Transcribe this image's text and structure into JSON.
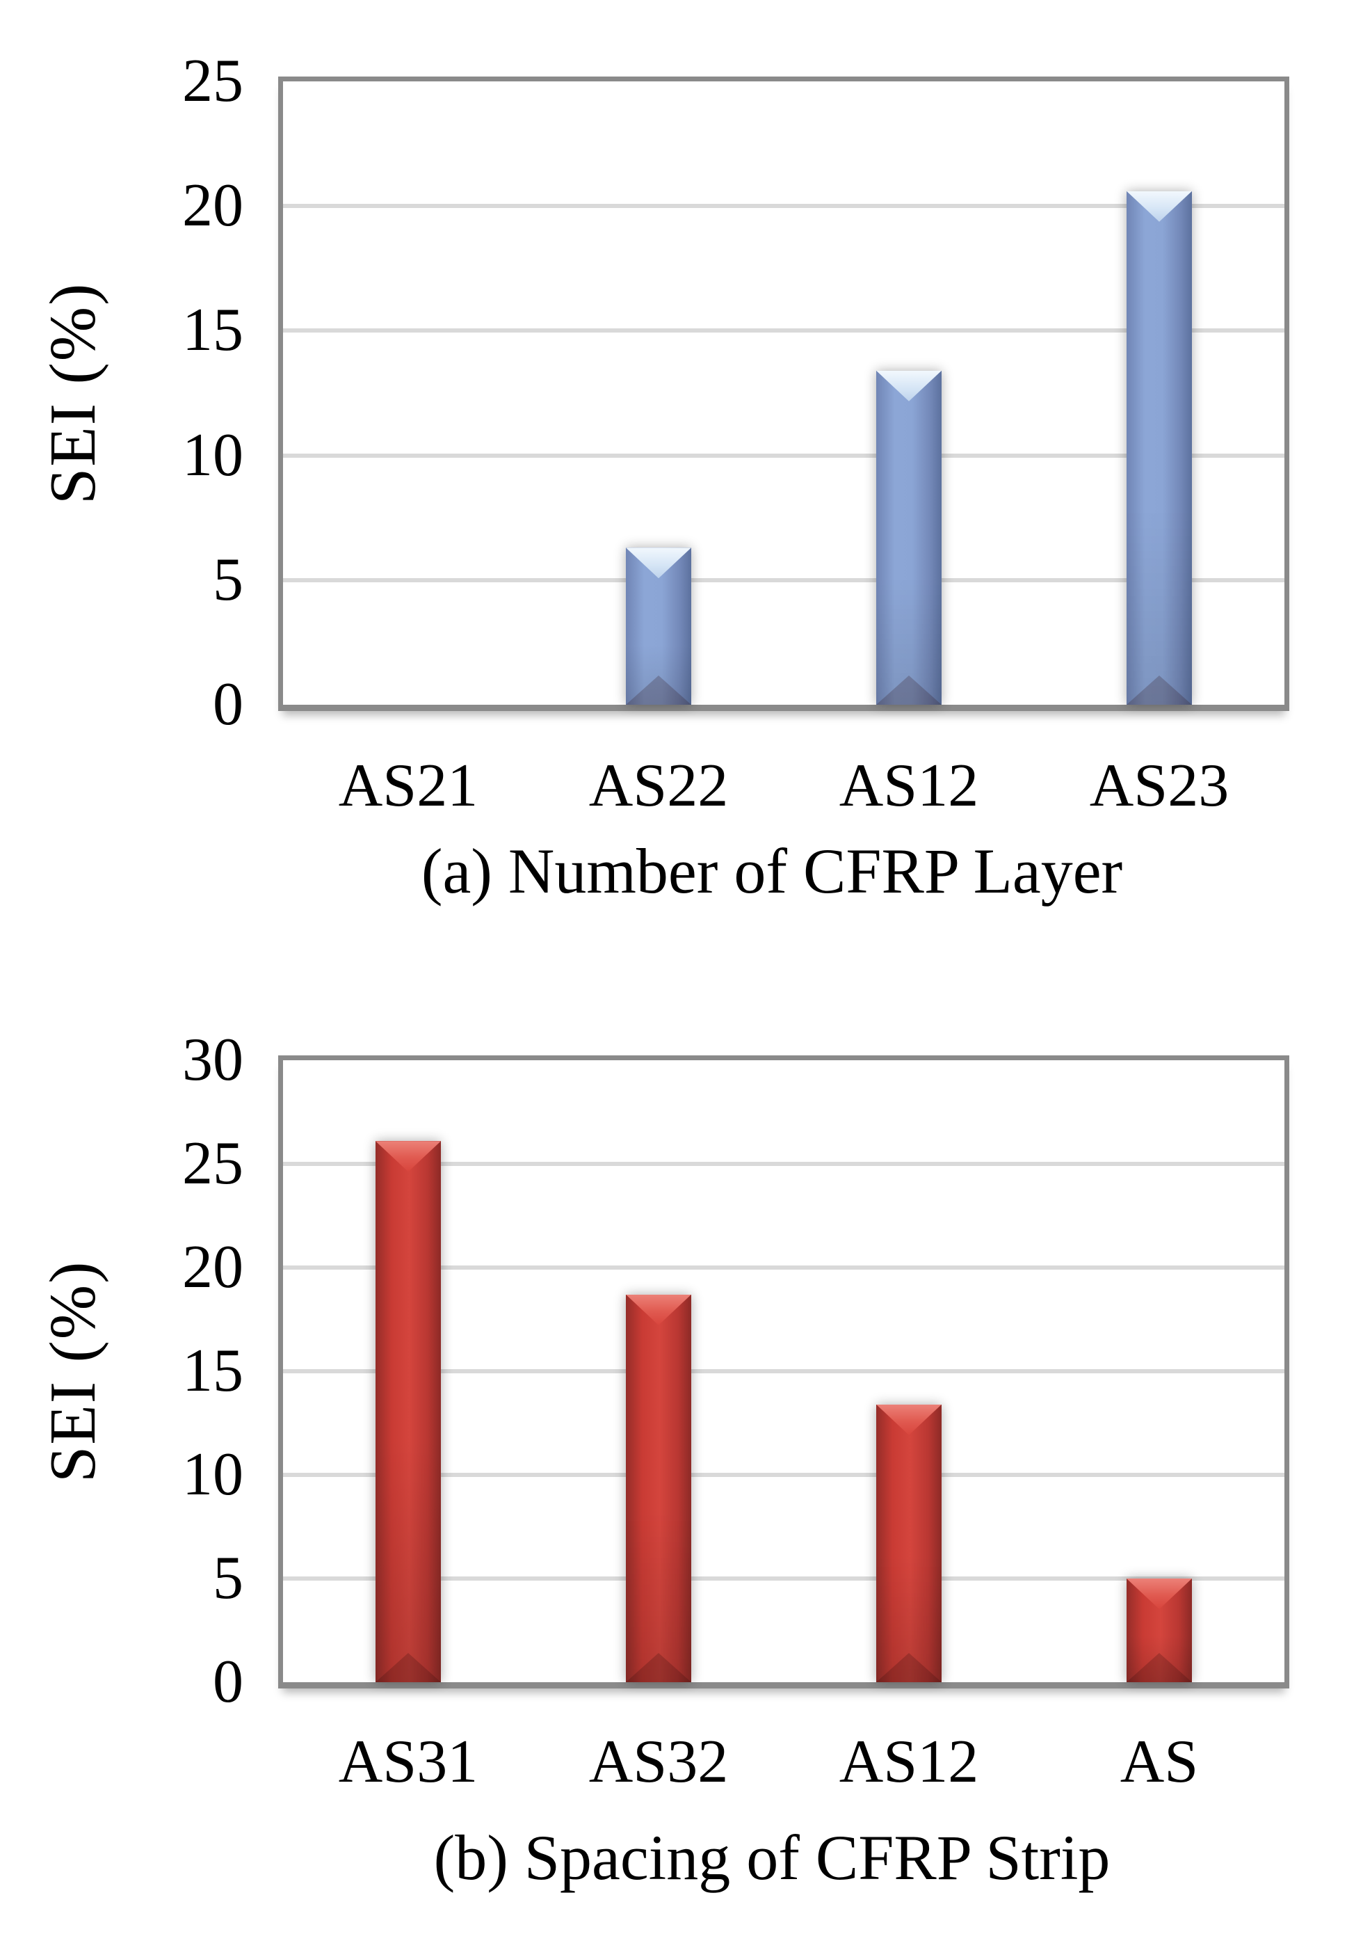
{
  "figure": {
    "background": "#FFFFFF",
    "description_visible_text_only": true
  },
  "colors": {
    "blue_bar_body": "#8CA6D6",
    "blue_bar_edge_dark": "#5C719E",
    "blue_bar_highlight": "#E6F0FA",
    "red_bar_body": "#CE3B35",
    "red_bar_edge_dark": "#8C2A26",
    "red_bar_highlight": "#E2655B",
    "gridline": "#D9D9D9",
    "axis_frame": "#8A8A8A",
    "text": "#000000"
  },
  "chart_data": [
    {
      "id": "a",
      "type": "bar",
      "title": "(a) Number of CFRP Layer",
      "ylabel": "SEI (%)",
      "categories": [
        "AS21",
        "AS22",
        "AS12",
        "AS23"
      ],
      "values": [
        0,
        6.3,
        13.4,
        20.6
      ],
      "ylim": [
        0,
        25
      ],
      "yticks": [
        0,
        5,
        10,
        15,
        20,
        25
      ],
      "grid": true,
      "legend": "none",
      "bar_style": "blue"
    },
    {
      "id": "b",
      "type": "bar",
      "title": "(b) Spacing of CFRP Strip",
      "ylabel": "SEI (%)",
      "categories": [
        "AS31",
        "AS32",
        "AS12",
        "AS"
      ],
      "values": [
        26.1,
        18.7,
        13.4,
        5
      ],
      "ylim": [
        0,
        30
      ],
      "yticks": [
        0,
        5,
        10,
        15,
        20,
        25,
        30
      ],
      "grid": true,
      "legend": "none",
      "bar_style": "red"
    }
  ]
}
